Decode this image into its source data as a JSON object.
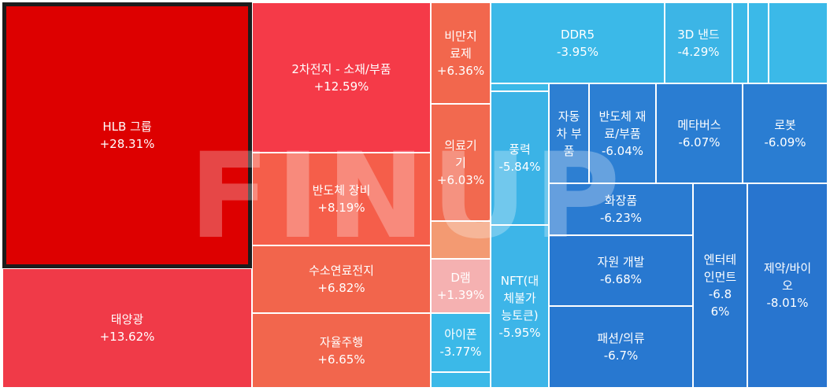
{
  "chart_data": {
    "type": "treemap",
    "tiles": [
      {
        "label": "HLB 그룹",
        "change": "+28.31%",
        "color": "#dd0000",
        "selected": true
      },
      {
        "label": "태양광",
        "change": "+13.62%",
        "color": "#f03a48"
      },
      {
        "label": "2차전지 - 소재/부품",
        "change": "+12.59%",
        "color": "#f53a48"
      },
      {
        "label": "반도체 장비",
        "change": "+8.19%",
        "color": "#f55e4a"
      },
      {
        "label": "수소연료전지",
        "change": "+6.82%",
        "color": "#f2654c"
      },
      {
        "label": "자율주행",
        "change": "+6.65%",
        "color": "#f2664d"
      },
      {
        "label": "비만치\n료제",
        "change": "+6.36%",
        "color": "#f2674d"
      },
      {
        "label": "의료기\n기",
        "change": "+6.03%",
        "color": "#f2694f"
      },
      {
        "label": "",
        "change": "",
        "color": "#f39a72"
      },
      {
        "label": "D램",
        "change": "+1.39%",
        "color": "#f5b1b1"
      },
      {
        "label": "아이폰",
        "change": "-3.77%",
        "color": "#3bb9e8"
      },
      {
        "label": "",
        "change": "",
        "color": "#3bb9e8"
      },
      {
        "label": "DDR5",
        "change": "-3.95%",
        "color": "#3bb9e8"
      },
      {
        "label": "3D 낸드",
        "change": "-4.29%",
        "color": "#3cb5e6"
      },
      {
        "label": "",
        "change": "",
        "color": "#3bb9e8"
      },
      {
        "label": "",
        "change": "",
        "color": "#3bb9e8"
      },
      {
        "label": "",
        "change": "",
        "color": "#3bb9e8"
      },
      {
        "label": "",
        "change": "",
        "color": "#3bb9e8"
      },
      {
        "label": "풍력",
        "change": "-5.84%",
        "color": "#3bb3e6"
      },
      {
        "label": "NFT(대\n체불가\n능토큰)",
        "change": "-5.95%",
        "color": "#3db5e8"
      },
      {
        "label": "자동\n차 부\n품",
        "change": "",
        "color": "#2d7fd2"
      },
      {
        "label": "반도체 재\n료/부품",
        "change": "-6.04%",
        "color": "#2c7fd3"
      },
      {
        "label": "메타버스",
        "change": "-6.07%",
        "color": "#2a7dd2"
      },
      {
        "label": "로봇",
        "change": "-6.09%",
        "color": "#2a7dd2"
      },
      {
        "label": "화장품",
        "change": "-6.23%",
        "color": "#2a7bd1"
      },
      {
        "label": "자원 개발",
        "change": "-6.68%",
        "color": "#2878d0"
      },
      {
        "label": "패션/의류",
        "change": "-6.7%",
        "color": "#2878d0"
      },
      {
        "label": "엔터테\n인먼트",
        "change": "-6.8\n6%",
        "color": "#2877cf"
      },
      {
        "label": "제약/바이\n오",
        "change": "-8.01%",
        "color": "#2875cf"
      }
    ]
  },
  "watermark": "FINUP"
}
